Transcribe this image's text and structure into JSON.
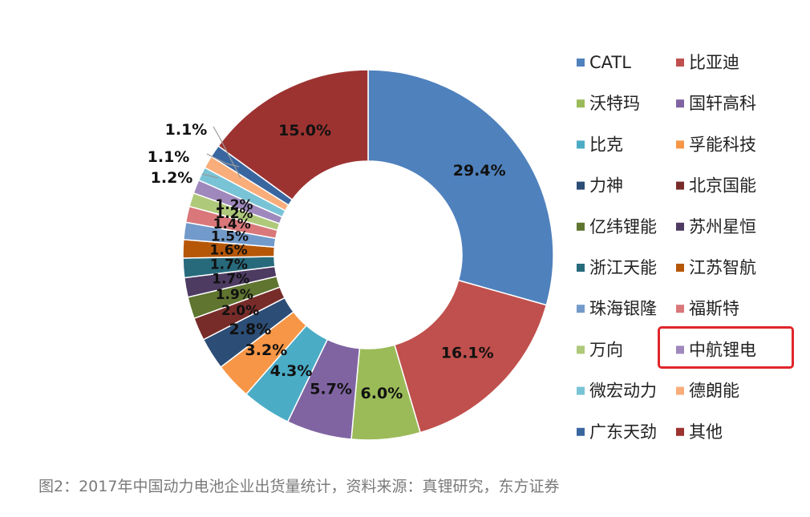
{
  "caption": "图2：2017年中国动力电池企业出货量统计，资料来源：真锂研究，东方证券",
  "chart_data": {
    "type": "pie",
    "donut": true,
    "title": "",
    "legend_position": "right",
    "slices": [
      {
        "name": "CATL",
        "value": 29.4,
        "label": "29.4%",
        "color": "#4f81bd"
      },
      {
        "name": "比亚迪",
        "value": 16.1,
        "label": "16.1%",
        "color": "#c0504d"
      },
      {
        "name": "沃特玛",
        "value": 6.0,
        "label": "6.0%",
        "color": "#9bbb59"
      },
      {
        "name": "国轩高科",
        "value": 5.7,
        "label": "5.7%",
        "color": "#8064a2"
      },
      {
        "name": "比克",
        "value": 4.3,
        "label": "4.3%",
        "color": "#4bacc6"
      },
      {
        "name": "孚能科技",
        "value": 3.2,
        "label": "3.2%",
        "color": "#f79646"
      },
      {
        "name": "力神",
        "value": 2.8,
        "label": "2.8%",
        "color": "#2c4d75"
      },
      {
        "name": "北京国能",
        "value": 2.0,
        "label": "2.0%",
        "color": "#772c2a"
      },
      {
        "name": "亿纬锂能",
        "value": 1.9,
        "label": "1.9%",
        "color": "#5f7530"
      },
      {
        "name": "苏州星恒",
        "value": 1.7,
        "label": "1.7%",
        "color": "#4d3b62"
      },
      {
        "name": "浙江天能",
        "value": 1.7,
        "label": "1.7%",
        "color": "#276a7c"
      },
      {
        "name": "江苏智航",
        "value": 1.6,
        "label": "1.6%",
        "color": "#b65708"
      },
      {
        "name": "珠海银隆",
        "value": 1.5,
        "label": "1.5%",
        "color": "#729aca"
      },
      {
        "name": "福斯特",
        "value": 1.4,
        "label": "1.4%",
        "color": "#d9777a"
      },
      {
        "name": "万向",
        "value": 1.2,
        "label": "1.2%",
        "color": "#afc97a"
      },
      {
        "name": "中航锂电",
        "value": 1.2,
        "label": "1.2%",
        "color": "#9e88bc"
      },
      {
        "name": "微宏动力",
        "value": 1.2,
        "label": "1.2%",
        "color": "#79c3d6"
      },
      {
        "name": "德朗能",
        "value": 1.1,
        "label": "1.1%",
        "color": "#f9ad7a"
      },
      {
        "name": "广东天劲",
        "value": 1.1,
        "label": "1.1%",
        "color": "#3a66a0"
      },
      {
        "name": "其他",
        "value": 15.0,
        "label": "15.0%",
        "color": "#9d3331"
      }
    ],
    "highlighted_legend_entry": "中航锂电",
    "highlight_color": "#e0262b"
  }
}
